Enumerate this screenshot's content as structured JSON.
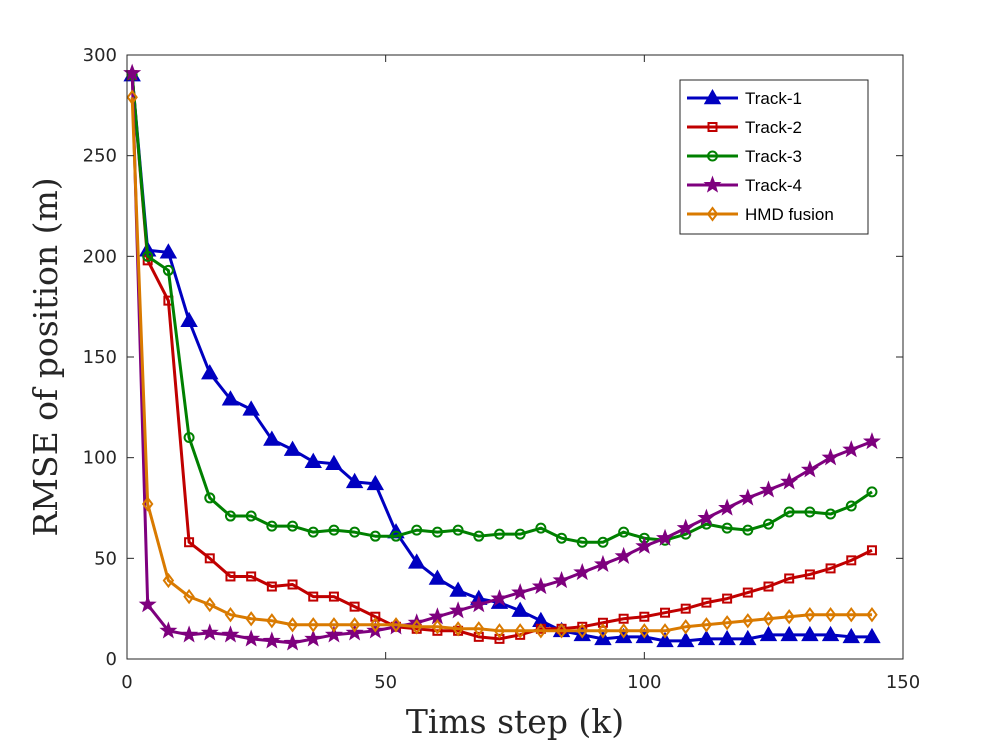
{
  "chart_data": {
    "type": "line",
    "title": "",
    "xlabel": "Tims step (k)",
    "ylabel": "RMSE of position (m)",
    "xlim": [
      0,
      150
    ],
    "ylim": [
      0,
      300
    ],
    "xticks": [
      0,
      50,
      100,
      150
    ],
    "yticks": [
      0,
      50,
      100,
      150,
      200,
      250,
      300
    ],
    "grid": false,
    "legend_position": "top-right",
    "x": [
      1,
      4,
      8,
      12,
      16,
      20,
      24,
      28,
      32,
      36,
      40,
      44,
      48,
      52,
      56,
      60,
      64,
      68,
      72,
      76,
      80,
      84,
      88,
      92,
      96,
      100,
      104,
      108,
      112,
      116,
      120,
      124,
      128,
      132,
      136,
      140,
      144
    ],
    "series": [
      {
        "name": "Track-1",
        "color": "#0000c0",
        "marker": "triangle",
        "values": [
          290,
          203,
          202,
          168,
          142,
          129,
          124,
          109,
          104,
          98,
          97,
          88,
          87,
          63,
          48,
          40,
          34,
          30,
          28,
          24,
          19,
          14,
          12,
          10,
          11,
          11,
          9,
          9,
          10,
          10,
          10,
          12,
          12,
          12,
          12,
          11,
          11
        ]
      },
      {
        "name": "Track-2",
        "color": "#c00000",
        "marker": "square",
        "values": [
          290,
          198,
          178,
          58,
          50,
          41,
          41,
          36,
          37,
          31,
          31,
          26,
          21,
          16,
          15,
          14,
          14,
          11,
          10,
          12,
          15,
          15,
          16,
          18,
          20,
          21,
          23,
          25,
          28,
          30,
          33,
          36,
          40,
          42,
          45,
          49,
          54
        ]
      },
      {
        "name": "Track-3",
        "color": "#008000",
        "marker": "circle",
        "values": [
          290,
          200,
          193,
          110,
          80,
          71,
          71,
          66,
          66,
          63,
          64,
          63,
          61,
          61,
          64,
          63,
          64,
          61,
          62,
          62,
          65,
          60,
          58,
          58,
          63,
          60,
          59,
          62,
          67,
          65,
          64,
          67,
          73,
          73,
          72,
          76,
          83
        ]
      },
      {
        "name": "Track-4",
        "color": "#7e007e",
        "marker": "star",
        "values": [
          291,
          27,
          14,
          12,
          13,
          12,
          10,
          9,
          8,
          10,
          12,
          13,
          14,
          16,
          18,
          21,
          24,
          27,
          30,
          33,
          36,
          39,
          43,
          47,
          51,
          56,
          60,
          65,
          70,
          75,
          80,
          84,
          88,
          94,
          100,
          104,
          108
        ]
      },
      {
        "name": "HMD fusion",
        "color": "#d97a00",
        "marker": "diamond",
        "values": [
          279,
          77,
          39,
          31,
          27,
          22,
          20,
          19,
          17,
          17,
          17,
          17,
          17,
          17,
          16,
          16,
          15,
          15,
          14,
          14,
          14,
          14,
          14,
          14,
          14,
          14,
          14,
          16,
          17,
          18,
          19,
          20,
          21,
          22,
          22,
          22,
          22
        ]
      }
    ]
  }
}
